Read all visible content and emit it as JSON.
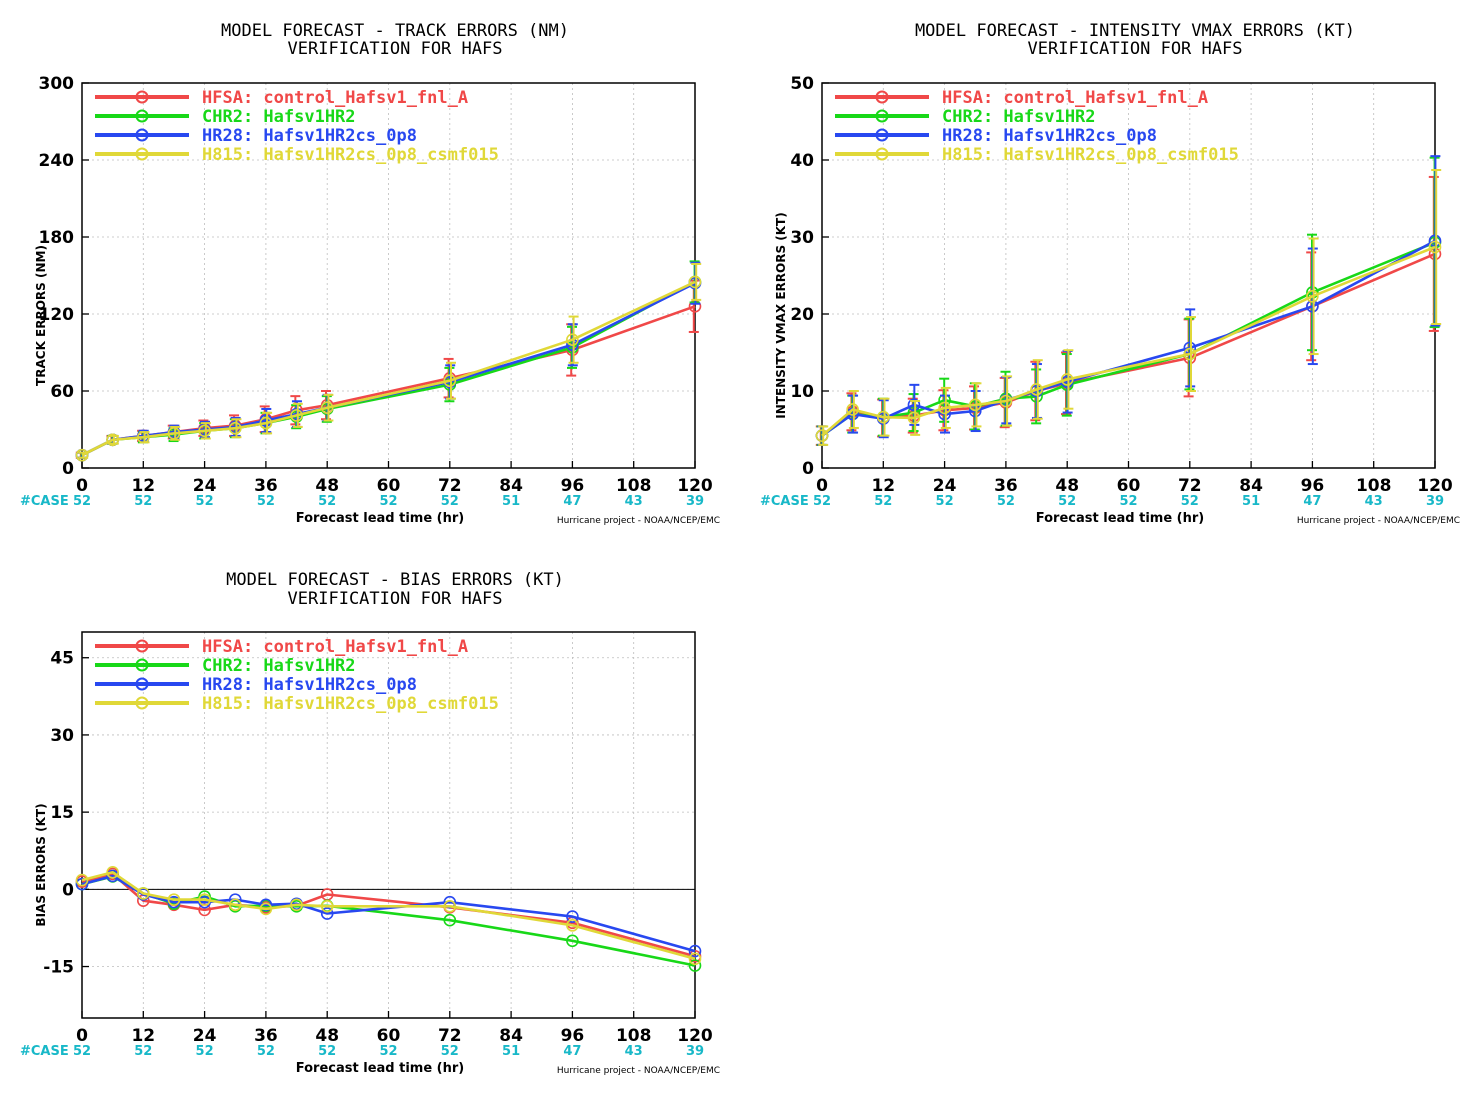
{
  "colors": {
    "HFSA": "#f04848",
    "CHR2": "#18d818",
    "HR28": "#2848f0",
    "H815": "#e0d838",
    "case": "#18b8c8"
  },
  "legend": [
    {
      "key": "HFSA",
      "label": "HFSA: control_Hafsv1_fnl_A"
    },
    {
      "key": "CHR2",
      "label": "CHR2: Hafsv1HR2"
    },
    {
      "key": "HR28",
      "label": "HR28: Hafsv1HR2cs_0p8"
    },
    {
      "key": "H815",
      "label": "H815: Hafsv1HR2cs_0p8_csmf015"
    }
  ],
  "case_label": "#CASE",
  "case_hours": [
    0,
    12,
    24,
    36,
    48,
    60,
    72,
    84,
    96,
    108,
    120
  ],
  "case_counts": [
    "52",
    "52",
    "52",
    "52",
    "52",
    "52",
    "52",
    "51",
    "47",
    "43",
    "39"
  ],
  "xlabel": "Forecast lead time (hr)",
  "credit": "Hurricane project - NOAA/NCEP/EMC",
  "chart_data": [
    {
      "type": "line",
      "title": "MODEL FORECAST - TRACK ERRORS (NM)",
      "subtitle": "VERIFICATION FOR HAFS",
      "xlabel": "Forecast lead time (hr)",
      "ylabel": "TRACK ERRORS (NM)",
      "xlim": [
        0,
        120
      ],
      "ylim": [
        0,
        300
      ],
      "xticks": [
        0,
        12,
        24,
        36,
        48,
        60,
        72,
        84,
        96,
        108,
        120
      ],
      "yticks": [
        0,
        60,
        120,
        180,
        240,
        300
      ],
      "grid": true,
      "legend_position": "top-left",
      "error_bars": true,
      "x": [
        0,
        6,
        12,
        18,
        24,
        30,
        36,
        42,
        48,
        72,
        96,
        120
      ],
      "series": [
        {
          "name": "HFSA",
          "values": [
            10,
            22,
            25,
            28,
            31,
            33,
            38,
            45,
            49,
            70,
            92,
            126
          ],
          "err": [
            2,
            3,
            4,
            5,
            6,
            8,
            10,
            11,
            11,
            15,
            20,
            20
          ]
        },
        {
          "name": "CHR2",
          "values": [
            10,
            22,
            24,
            26,
            29,
            31,
            35,
            40,
            46,
            65,
            94,
            145
          ],
          "err": [
            2,
            3,
            4,
            5,
            6,
            7,
            8,
            9,
            10,
            13,
            16,
            16
          ]
        },
        {
          "name": "HR28",
          "values": [
            10,
            22,
            25,
            28,
            30,
            32,
            37,
            42,
            47,
            67,
            96,
            144
          ],
          "err": [
            2,
            3,
            4,
            5,
            6,
            7,
            9,
            10,
            10,
            13,
            16,
            16
          ]
        },
        {
          "name": "H815",
          "values": [
            10,
            22,
            24,
            27,
            29,
            31,
            35,
            41,
            47,
            68,
            100,
            145
          ],
          "err": [
            2,
            3,
            4,
            5,
            6,
            7,
            8,
            9,
            10,
            14,
            18,
            14
          ]
        }
      ]
    },
    {
      "type": "line",
      "title": "MODEL FORECAST - INTENSITY VMAX ERRORS (KT)",
      "subtitle": "VERIFICATION FOR HAFS",
      "xlabel": "Forecast lead time (hr)",
      "ylabel": "INTENSITY VMAX ERRORS (KT)",
      "xlim": [
        0,
        120
      ],
      "ylim": [
        0,
        50
      ],
      "xticks": [
        0,
        12,
        24,
        36,
        48,
        60,
        72,
        84,
        96,
        108,
        120
      ],
      "yticks": [
        0,
        10,
        20,
        30,
        40,
        50
      ],
      "grid": true,
      "legend_position": "top-left",
      "error_bars": true,
      "x": [
        0,
        6,
        12,
        18,
        24,
        30,
        36,
        42,
        48,
        72,
        96,
        120
      ],
      "series": [
        {
          "name": "HFSA",
          "values": [
            4.2,
            7.3,
            6.5,
            6.8,
            7.5,
            7.8,
            8.5,
            10.0,
            11.0,
            14.3,
            21.0,
            27.8
          ],
          "err": [
            1.2,
            2.4,
            2.4,
            2.2,
            2.6,
            2.8,
            3.2,
            3.8,
            4.0,
            5.0,
            7.0,
            10.0
          ]
        },
        {
          "name": "CHR2",
          "values": [
            4.2,
            7.0,
            6.6,
            7.2,
            8.8,
            8.0,
            9.0,
            9.3,
            10.8,
            14.8,
            22.8,
            29.3
          ],
          "err": [
            1.2,
            2.4,
            2.4,
            2.4,
            2.8,
            3.0,
            3.5,
            3.5,
            4.0,
            4.6,
            7.5,
            11.0
          ]
        },
        {
          "name": "HR28",
          "values": [
            4.2,
            7.0,
            6.4,
            8.2,
            7.0,
            7.4,
            8.8,
            10.0,
            11.2,
            15.6,
            21.0,
            29.5
          ],
          "err": [
            1.2,
            2.4,
            2.4,
            2.6,
            2.4,
            2.6,
            3.0,
            3.5,
            4.0,
            5.0,
            7.5,
            11.0
          ]
        },
        {
          "name": "H815",
          "values": [
            4.2,
            7.6,
            6.6,
            6.5,
            7.8,
            8.2,
            8.7,
            10.2,
            11.5,
            14.8,
            22.3,
            28.7
          ],
          "err": [
            1.2,
            2.4,
            2.4,
            2.2,
            2.6,
            2.8,
            3.2,
            3.8,
            3.8,
            4.8,
            7.5,
            10.0
          ]
        }
      ]
    },
    {
      "type": "line",
      "title": "MODEL FORECAST - BIAS ERRORS (KT)",
      "subtitle": "VERIFICATION FOR HAFS",
      "xlabel": "Forecast lead time (hr)",
      "ylabel": "BIAS ERRORS (KT)",
      "xlim": [
        0,
        120
      ],
      "ylim": [
        -25,
        50
      ],
      "xticks": [
        0,
        12,
        24,
        36,
        48,
        60,
        72,
        84,
        96,
        108,
        120
      ],
      "yticks": [
        -15,
        0,
        15,
        30,
        45
      ],
      "zero_line": true,
      "grid": true,
      "legend_position": "top-left",
      "error_bars": false,
      "x": [
        0,
        6,
        12,
        18,
        24,
        30,
        36,
        42,
        48,
        72,
        96,
        120
      ],
      "series": [
        {
          "name": "HFSA",
          "values": [
            1.5,
            3.0,
            -2.2,
            -3.0,
            -4.0,
            -3.0,
            -3.5,
            -3.2,
            -1.0,
            -3.5,
            -6.5,
            -13.0
          ]
        },
        {
          "name": "CHR2",
          "values": [
            1.0,
            2.5,
            -0.8,
            -2.8,
            -1.4,
            -3.3,
            -3.2,
            -3.3,
            -3.2,
            -6.0,
            -10.0,
            -14.8
          ]
        },
        {
          "name": "HR28",
          "values": [
            1.0,
            2.6,
            -1.0,
            -2.5,
            -2.5,
            -2.0,
            -3.0,
            -2.8,
            -4.7,
            -2.5,
            -5.3,
            -12.0
          ]
        },
        {
          "name": "H815",
          "values": [
            1.8,
            3.3,
            -0.8,
            -2.0,
            -2.0,
            -3.0,
            -3.8,
            -3.0,
            -3.3,
            -3.3,
            -7.0,
            -13.5
          ]
        }
      ]
    }
  ]
}
